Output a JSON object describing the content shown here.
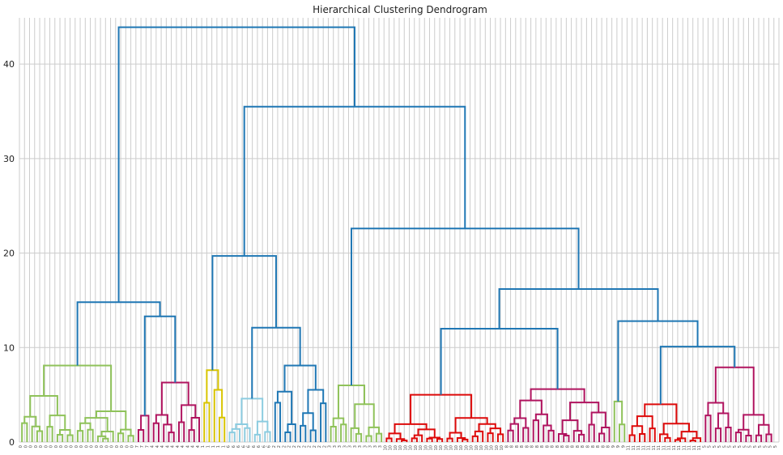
{
  "chart_data": {
    "type": "dendrogram",
    "title": "Hierarchical Clustering Dendrogram",
    "xlabel": "",
    "ylabel": "",
    "ylim": [
      0,
      44.9
    ],
    "yticks": [
      "0",
      "10",
      "20",
      "30",
      "40"
    ],
    "ytick_values": [
      0,
      10,
      20,
      30,
      40
    ],
    "grid": true,
    "colors": {
      "above": "#1f77b4",
      "green": "#8fc25a",
      "magenta": "#b0145f",
      "yellow": "#d8c400",
      "lightblue": "#8ccce0",
      "red": "#dd0a0a"
    },
    "leaves": [
      "0",
      "0",
      "0",
      "0",
      "0",
      "0",
      "0",
      "0",
      "0",
      "0",
      "0",
      "0",
      "0",
      "0",
      "0",
      "0",
      "0",
      "0",
      "0",
      "0",
      "0",
      "0",
      "0",
      "7",
      "7",
      "7",
      "4",
      "4",
      "4",
      "4",
      "4",
      "4",
      "4",
      "4",
      "4",
      "4",
      "1",
      "1",
      "1",
      "1",
      "1",
      "6",
      "6",
      "6",
      "6",
      "6",
      "6",
      "6",
      "6",
      "6",
      "2",
      "2",
      "2",
      "2",
      "2",
      "2",
      "2",
      "2",
      "2",
      "2",
      "2",
      "3",
      "3",
      "3",
      "3",
      "3",
      "3",
      "3",
      "3",
      "3",
      "3",
      "3",
      "10",
      "10",
      "10",
      "10",
      "10",
      "10",
      "10",
      "10",
      "10",
      "10",
      "10",
      "10",
      "10",
      "10",
      "10",
      "10",
      "10",
      "10",
      "10",
      "10",
      "10",
      "10",
      "10",
      "10",
      "8",
      "8",
      "8",
      "8",
      "8",
      "8",
      "8",
      "8",
      "8",
      "8",
      "8",
      "8",
      "8",
      "8",
      "8",
      "8",
      "8",
      "8",
      "8",
      "8",
      "8",
      "9",
      "9",
      "9",
      "11",
      "11",
      "11",
      "11",
      "11",
      "11",
      "11",
      "11",
      "11",
      "11",
      "11",
      "11",
      "11",
      "11",
      "11",
      "5",
      "5",
      "5",
      "5",
      "5",
      "5",
      "5",
      "5",
      "5",
      "5",
      "5",
      "5",
      "5",
      "5",
      "5"
    ],
    "clusters": [
      {
        "name": "cluster-0",
        "color": "green",
        "start": 0,
        "end": 22,
        "top": 8.1
      },
      {
        "name": "cluster-7",
        "color": "magenta",
        "start": 23,
        "end": 25,
        "top": 2.8
      },
      {
        "name": "cluster-4",
        "color": "magenta",
        "start": 26,
        "end": 35,
        "top": 6.3
      },
      {
        "name": "cluster-1",
        "color": "yellow",
        "start": 36,
        "end": 40,
        "top": 7.6
      },
      {
        "name": "cluster-6",
        "color": "lightblue",
        "start": 41,
        "end": 49,
        "top": 4.6
      },
      {
        "name": "cluster-2",
        "color": "above",
        "start": 50,
        "end": 60,
        "top": 8.1
      },
      {
        "name": "cluster-3",
        "color": "green",
        "start": 61,
        "end": 71,
        "top": 6.0
      },
      {
        "name": "cluster-10",
        "color": "red",
        "start": 72,
        "end": 95,
        "top": 5.0
      },
      {
        "name": "cluster-8",
        "color": "magenta",
        "start": 96,
        "end": 116,
        "top": 5.6
      },
      {
        "name": "cluster-9",
        "color": "green",
        "start": 117,
        "end": 119,
        "top": 4.3
      },
      {
        "name": "cluster-11",
        "color": "red",
        "start": 120,
        "end": 134,
        "top": 4.0
      },
      {
        "name": "cluster-5",
        "color": "magenta",
        "start": 135,
        "end": 148,
        "top": 7.9
      }
    ],
    "merges": [
      {
        "name": "merge-0-7-4",
        "left": "cluster-0",
        "right": "g-7-4",
        "height": 14.8
      },
      {
        "name": "merge-7-4",
        "id": "g-7-4",
        "left": "cluster-7",
        "right": "cluster-4",
        "height": 13.3
      },
      {
        "name": "merge-6-2",
        "id": "g-6-2",
        "left": "cluster-6",
        "right": "cluster-2",
        "height": 12.1
      },
      {
        "name": "merge-1-6-2",
        "id": "g-1-6-2",
        "left": "cluster-1",
        "right": "g-6-2",
        "height": 19.7
      },
      {
        "name": "merge-10-8",
        "id": "g-10-8",
        "left": "cluster-10",
        "right": "cluster-8",
        "height": 12.0
      },
      {
        "name": "merge-11-5",
        "id": "g-11-5",
        "left": "cluster-11",
        "right": "cluster-5",
        "height": 10.1
      },
      {
        "name": "merge-9-11-5",
        "id": "g-9-11-5",
        "left": "cluster-9",
        "right": "g-11-5",
        "height": 12.8
      },
      {
        "name": "merge-10-8-9-11-5",
        "id": "g-R",
        "left": "g-10-8",
        "right": "g-9-11-5",
        "height": 16.2
      },
      {
        "name": "merge-3-R",
        "id": "g-3-R",
        "left": "cluster-3",
        "right": "g-R",
        "height": 22.6
      },
      {
        "name": "merge-B-R",
        "id": "g-B",
        "left": "g-1-6-2",
        "right": "g-3-R",
        "height": 35.5
      },
      {
        "name": "merge-root",
        "id": "root",
        "left": "g-A",
        "right": "g-B",
        "height": 43.9
      }
    ]
  }
}
